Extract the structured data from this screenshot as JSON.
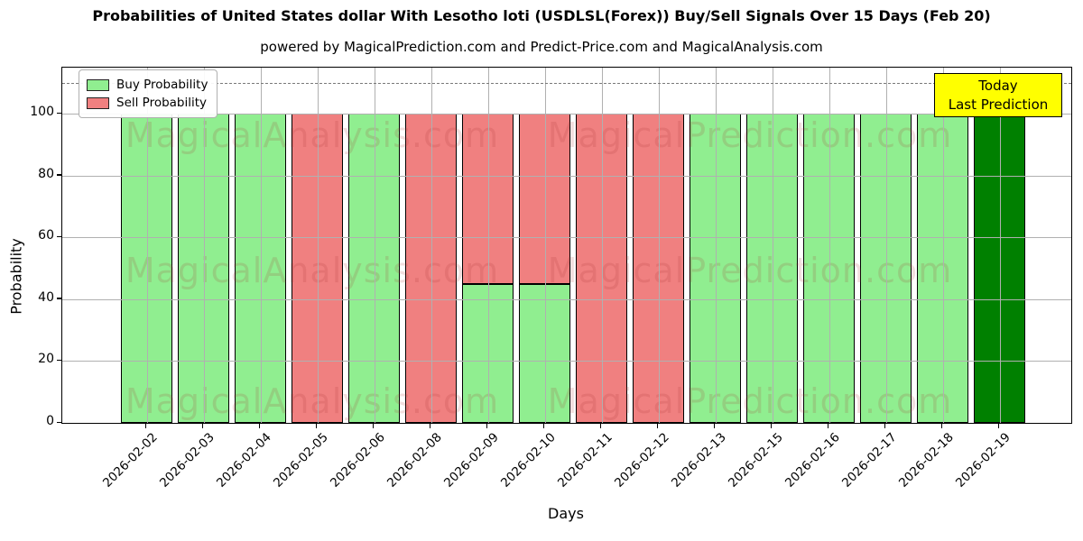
{
  "chart_data": {
    "type": "bar",
    "stacked": true,
    "title": "Probabilities of United States dollar With Lesotho loti (USDLSL(Forex)) Buy/Sell Signals Over 15 Days (Feb 20)",
    "subtitle": "powered by MagicalPrediction.com and Predict-Price.com and MagicalAnalysis.com",
    "xlabel": "Days",
    "ylabel": "Probability",
    "categories": [
      "2026-02-02",
      "2026-02-03",
      "2026-02-04",
      "2026-02-05",
      "2026-02-06",
      "2026-02-08",
      "2026-02-09",
      "2026-02-10",
      "2026-02-11",
      "2026-02-12",
      "2026-02-13",
      "2026-02-15",
      "2026-02-16",
      "2026-02-17",
      "2026-02-18",
      "2026-02-19"
    ],
    "series": [
      {
        "name": "Buy Probability",
        "color": "#90ee90",
        "values": [
          100,
          100,
          100,
          0,
          100,
          0,
          45,
          45,
          0,
          0,
          100,
          100,
          100,
          100,
          100,
          100
        ]
      },
      {
        "name": "Sell Probability",
        "color": "#f08080",
        "values": [
          0,
          0,
          0,
          100,
          0,
          100,
          55,
          55,
          100,
          100,
          0,
          0,
          0,
          0,
          0,
          0
        ]
      }
    ],
    "ylim": [
      0,
      115
    ],
    "yticks": [
      0,
      20,
      40,
      60,
      80,
      100
    ],
    "grid": true,
    "legend_position": "upper left",
    "dashed_line_y": 110,
    "today_index": 15,
    "today_color": "#008000"
  },
  "legend": {
    "buy_label": "Buy Probability",
    "sell_label": "Sell Probability"
  },
  "annotation_box": {
    "line1": "Today",
    "line2": "Last Prediction",
    "bg_color": "#ffff00"
  },
  "watermarks": {
    "left": "MagicalAnalysis.com",
    "right": "MagicalPrediction.com"
  },
  "colors": {
    "buy": "#90ee90",
    "sell": "#f08080",
    "today": "#008000",
    "bar_edge": "#000000",
    "grid": "#b0b0b0",
    "dashed_line": "#7a7a7a",
    "annotation_bg": "#ffff00"
  }
}
